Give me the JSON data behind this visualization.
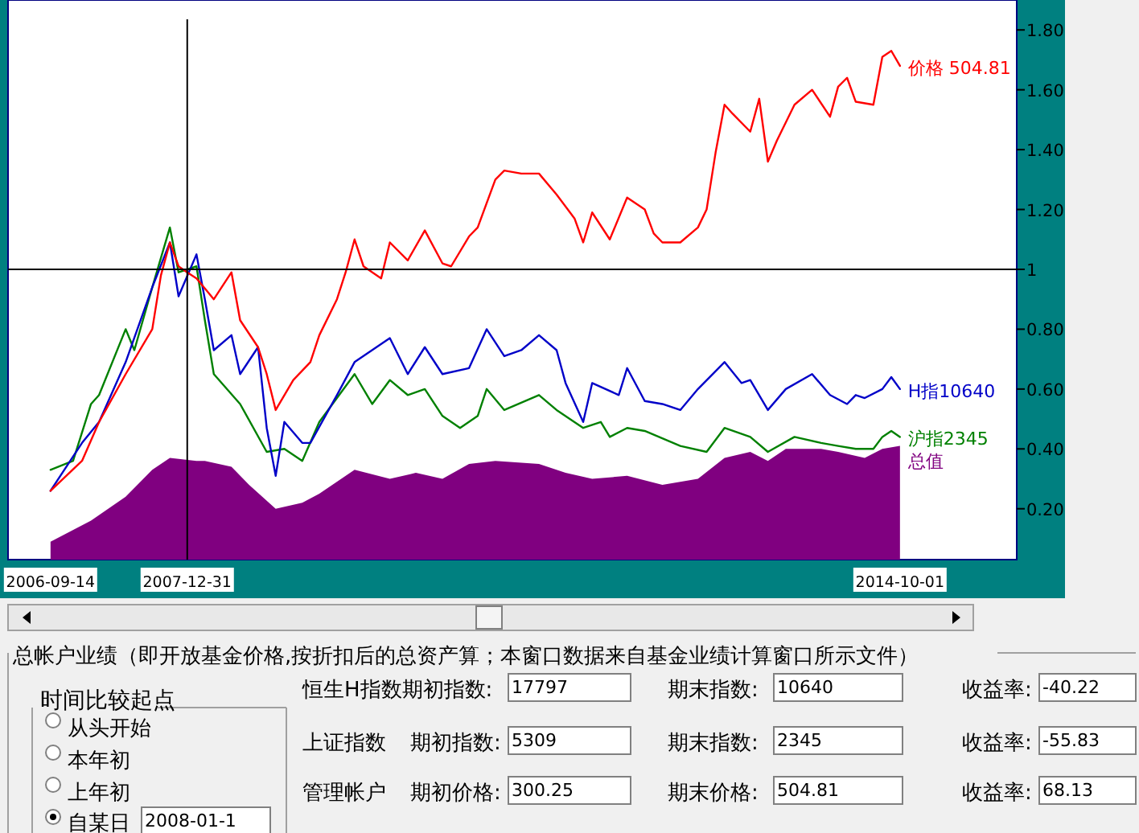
{
  "chart_data": {
    "type": "line",
    "xlim": [
      "2006-04-20",
      "2015-11-09"
    ],
    "xticks": [
      "2006-09-14",
      "2007-12-31",
      "2014-10-01"
    ],
    "ylim": [
      0.03,
      1.9
    ],
    "yticks": [
      {
        "value": 0.2,
        "label": "0.20"
      },
      {
        "value": 0.4,
        "label": "0.40"
      },
      {
        "value": 0.6,
        "label": "0.60"
      },
      {
        "value": 0.8,
        "label": "0.80"
      },
      1,
      {
        "value": 1.2,
        "label": "1.20"
      },
      {
        "value": 1.4,
        "label": "1.40"
      },
      {
        "value": 1.6,
        "label": "1.60"
      },
      {
        "value": 1.8,
        "label": "1.80"
      }
    ],
    "ref_lines": [
      {
        "axis": "x",
        "value": "2007-12-31",
        "color": "#000000"
      },
      {
        "axis": "y",
        "value": 1,
        "color": "#000000"
      }
    ],
    "series": [
      {
        "name": "总值",
        "type": "area",
        "color": "#800080",
        "x": [
          "2006-09-14",
          "2007-02",
          "2007-06",
          "2007-09",
          "2007-11",
          "2008-02",
          "2008-03",
          "2008-06",
          "2008-08",
          "2008-11",
          "2009-02",
          "2009-04",
          "2009-08",
          "2009-12",
          "2010-03",
          "2010-06",
          "2010-09",
          "2010-12",
          "2011-05",
          "2011-08",
          "2011-11",
          "2012-03",
          "2012-07",
          "2012-11",
          "2013-02",
          "2013-05",
          "2013-07",
          "2013-09",
          "2014-01",
          "2014-03",
          "2014-06",
          "2014-08",
          "2014-10-01"
        ],
        "values": [
          0.09,
          0.16,
          0.24,
          0.33,
          0.37,
          0.36,
          0.36,
          0.34,
          0.28,
          0.2,
          0.22,
          0.25,
          0.33,
          0.3,
          0.32,
          0.3,
          0.35,
          0.36,
          0.35,
          0.32,
          0.3,
          0.31,
          0.28,
          0.3,
          0.37,
          0.39,
          0.36,
          0.4,
          0.4,
          0.39,
          0.37,
          0.4,
          0.41
        ]
      },
      {
        "name": "沪指2345",
        "color": "#008000",
        "x": [
          "2006-09-14",
          "2006-12",
          "2007-02",
          "2007-03",
          "2007-06",
          "2007-07",
          "2007-09",
          "2007-11",
          "2007-12",
          "2008-02",
          "2008-03",
          "2008-04",
          "2008-07",
          "2008-10",
          "2008-12",
          "2009-02",
          "2009-04",
          "2009-08",
          "2009-10",
          "2009-12",
          "2010-02",
          "2010-04",
          "2010-06",
          "2010-08",
          "2010-10",
          "2010-11",
          "2011-01",
          "2011-05",
          "2011-07",
          "2011-10",
          "2011-12",
          "2012-01",
          "2012-03",
          "2012-05",
          "2012-09",
          "2012-12",
          "2013-02",
          "2013-05",
          "2013-07",
          "2013-10",
          "2014-01",
          "2014-03",
          "2014-05",
          "2014-07",
          "2014-08",
          "2014-09",
          "2014-10-01"
        ],
        "values": [
          0.33,
          0.36,
          0.55,
          0.58,
          0.8,
          0.73,
          0.94,
          1.14,
          0.99,
          1.01,
          0.83,
          0.65,
          0.55,
          0.39,
          0.4,
          0.36,
          0.49,
          0.65,
          0.55,
          0.63,
          0.58,
          0.6,
          0.51,
          0.47,
          0.51,
          0.6,
          0.53,
          0.58,
          0.53,
          0.47,
          0.49,
          0.44,
          0.47,
          0.46,
          0.41,
          0.39,
          0.47,
          0.44,
          0.39,
          0.44,
          0.42,
          0.41,
          0.4,
          0.4,
          0.44,
          0.46,
          0.44
        ]
      },
      {
        "name": "H指10640",
        "color": "#0000c8",
        "x": [
          "2006-09-14",
          "2007-01",
          "2007-03",
          "2007-06",
          "2007-09",
          "2007-11",
          "2007-12",
          "2008-02",
          "2008-03",
          "2008-04",
          "2008-06",
          "2008-07",
          "2008-09",
          "2008-10",
          "2008-11",
          "2008-12",
          "2009-02",
          "2009-03",
          "2009-06",
          "2009-08",
          "2009-12",
          "2010-02",
          "2010-04",
          "2010-06",
          "2010-09",
          "2010-11",
          "2011-01",
          "2011-03",
          "2011-05",
          "2011-07",
          "2011-08",
          "2011-10",
          "2011-11",
          "2012-02",
          "2012-03",
          "2012-05",
          "2012-07",
          "2012-09",
          "2012-11",
          "2013-02",
          "2013-04",
          "2013-05",
          "2013-07",
          "2013-09",
          "2013-12",
          "2014-02",
          "2014-04",
          "2014-05",
          "2014-06",
          "2014-08",
          "2014-09",
          "2014-10-01"
        ],
        "values": [
          0.26,
          0.42,
          0.49,
          0.69,
          0.94,
          1.09,
          0.91,
          1.05,
          0.9,
          0.73,
          0.78,
          0.65,
          0.74,
          0.47,
          0.31,
          0.49,
          0.42,
          0.42,
          0.58,
          0.69,
          0.77,
          0.65,
          0.74,
          0.65,
          0.67,
          0.8,
          0.71,
          0.73,
          0.78,
          0.73,
          0.62,
          0.49,
          0.62,
          0.58,
          0.67,
          0.56,
          0.55,
          0.53,
          0.6,
          0.69,
          0.62,
          0.63,
          0.53,
          0.6,
          0.65,
          0.58,
          0.55,
          0.58,
          0.57,
          0.6,
          0.64,
          0.6
        ]
      },
      {
        "name": "价格 504.81",
        "color": "#ff0000",
        "x": [
          "2006-09-14",
          "2007-01",
          "2007-03",
          "2007-06",
          "2007-09",
          "2007-10",
          "2007-11",
          "2007-12",
          "2007-12-31",
          "2008-02",
          "2008-04",
          "2008-06",
          "2008-07",
          "2008-09",
          "2008-10",
          "2008-11",
          "2009-01",
          "2009-03",
          "2009-04",
          "2009-06",
          "2009-07",
          "2009-08",
          "2009-09",
          "2009-11",
          "2009-12",
          "2010-02",
          "2010-04",
          "2010-06",
          "2010-07",
          "2010-09",
          "2010-10",
          "2010-12",
          "2011-01",
          "2011-03",
          "2011-05",
          "2011-07",
          "2011-09",
          "2011-10",
          "2011-11",
          "2012-01",
          "2012-03",
          "2012-05",
          "2012-06",
          "2012-07",
          "2012-09",
          "2012-11",
          "2012-12",
          "2013-01",
          "2013-02",
          "2013-03",
          "2013-05",
          "2013-06",
          "2013-07",
          "2013-08",
          "2013-10",
          "2013-12",
          "2014-02",
          "2014-03",
          "2014-04",
          "2014-05",
          "2014-07",
          "2014-08",
          "2014-09",
          "2014-10-01"
        ],
        "values": [
          0.26,
          0.36,
          0.49,
          0.65,
          0.8,
          0.98,
          1.09,
          1.01,
          0.99,
          0.97,
          0.9,
          0.99,
          0.83,
          0.74,
          0.65,
          0.53,
          0.63,
          0.69,
          0.78,
          0.9,
          0.99,
          1.1,
          1.01,
          0.97,
          1.09,
          1.03,
          1.13,
          1.02,
          1.01,
          1.11,
          1.14,
          1.3,
          1.33,
          1.32,
          1.32,
          1.25,
          1.17,
          1.09,
          1.19,
          1.1,
          1.24,
          1.2,
          1.12,
          1.09,
          1.09,
          1.14,
          1.2,
          1.39,
          1.55,
          1.52,
          1.46,
          1.57,
          1.36,
          1.43,
          1.55,
          1.6,
          1.51,
          1.61,
          1.64,
          1.56,
          1.55,
          1.71,
          1.73,
          1.68
        ]
      }
    ],
    "annotations": [
      "总帐户业绩（即开放基金价格,按折扣后的总资产算；本窗口数据来自基金业绩计算窗口所示文件）",
      "时间比较起点",
      "从头开始",
      "本年初",
      "上年初",
      "自某日",
      "2008-01-1",
      "恒生H指数期初指数:",
      "17797",
      "期末指数:",
      "10640",
      "收益率:",
      "-40.22",
      "上证指数",
      "期初指数:",
      "5309",
      "期末指数:",
      "2345",
      "收益率:",
      "-55.83",
      "管理帐户",
      "期初价格:",
      "300.25",
      "期末价格:",
      "504.81",
      "收益率:",
      "68.13"
    ]
  }
}
